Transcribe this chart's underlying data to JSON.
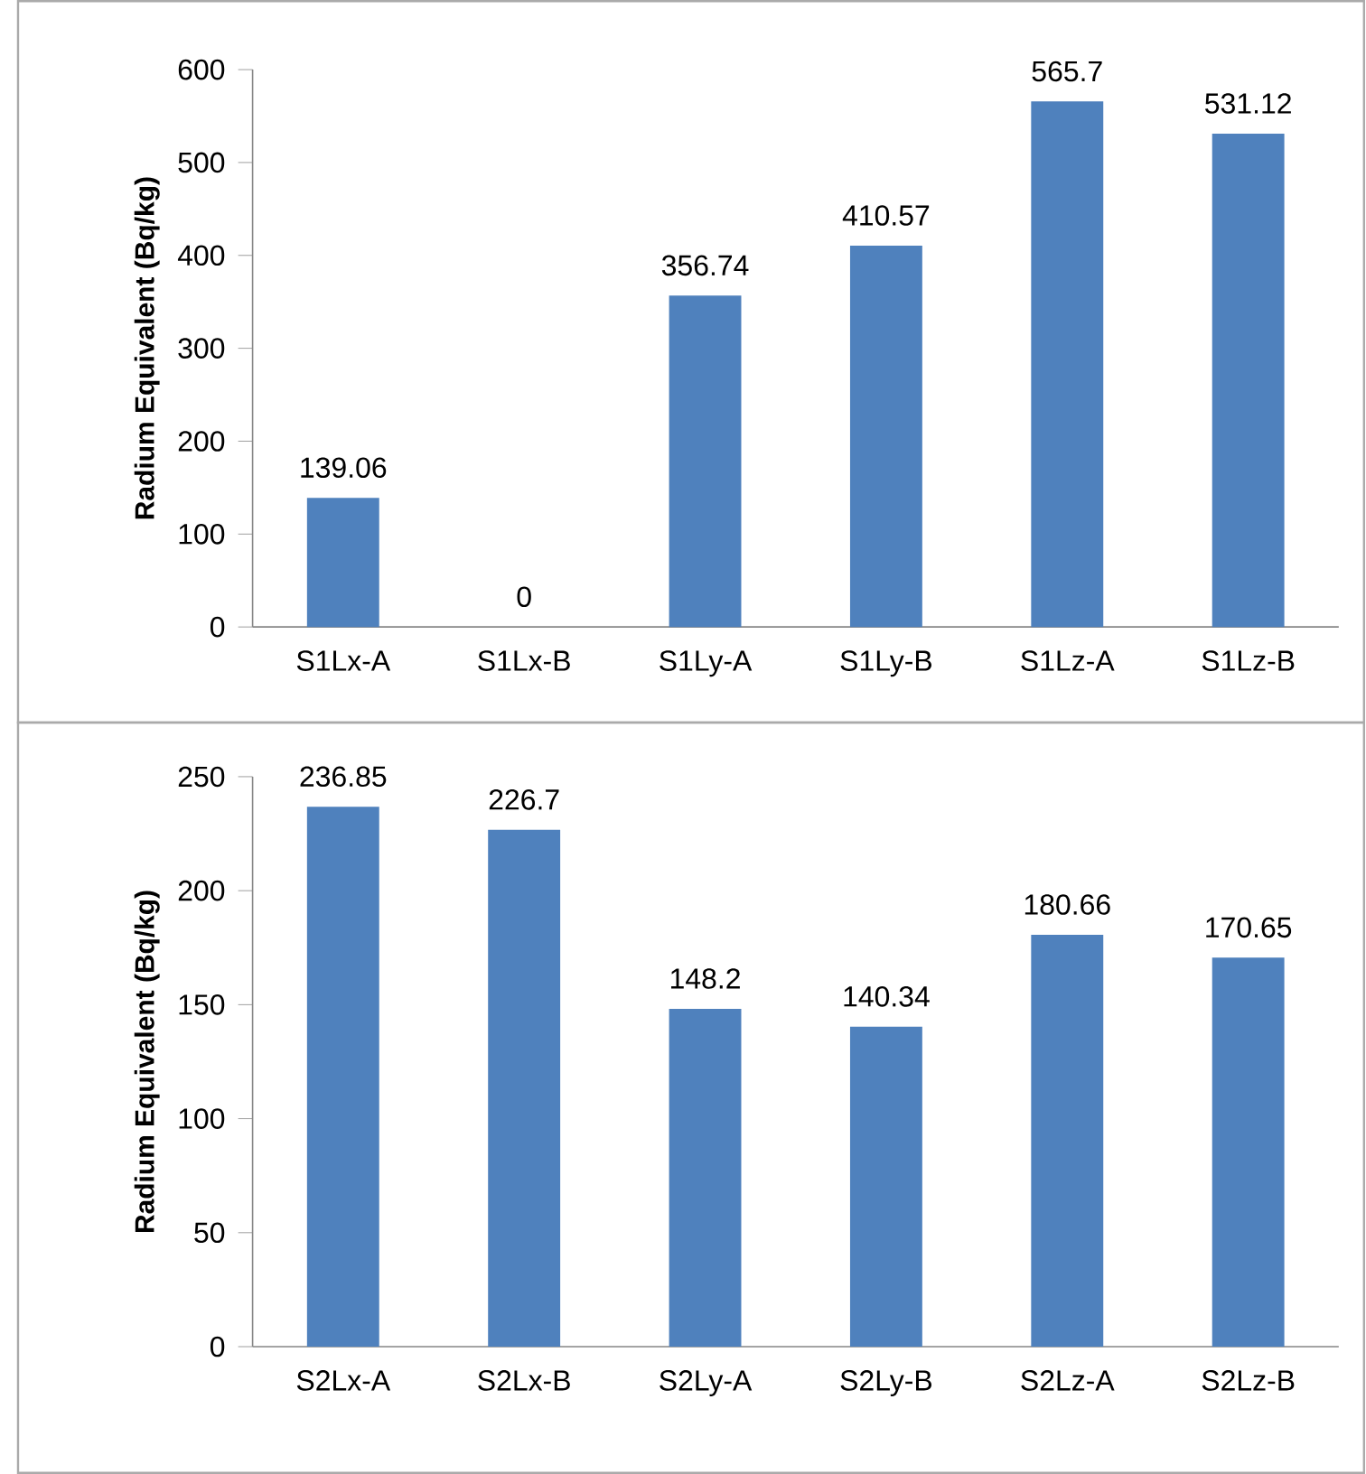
{
  "chart_data": [
    {
      "type": "bar",
      "ylabel": "Radium Equivalent (Bq/kg)",
      "categories": [
        "S1Lx-A",
        "S1Lx-B",
        "S1Ly-A",
        "S1Ly-B",
        "S1Lz-A",
        "S1Lz-B"
      ],
      "values": [
        139.06,
        0,
        356.74,
        410.57,
        565.7,
        531.12
      ],
      "color": "#4f81bd",
      "ylim": [
        0,
        600
      ],
      "yticks": [
        0,
        100,
        200,
        300,
        400,
        500,
        600
      ],
      "data_labels": true
    },
    {
      "type": "bar",
      "ylabel": "Radium Equivalent (Bq/kg)",
      "categories": [
        "S2Lx-A",
        "S2Lx-B",
        "S2Ly-A",
        "S2Ly-B",
        "S2Lz-A",
        "S2Lz-B"
      ],
      "values": [
        236.85,
        226.7,
        148.2,
        140.34,
        180.66,
        170.65
      ],
      "color": "#4f81bd",
      "ylim": [
        0,
        250
      ],
      "yticks": [
        0,
        50,
        100,
        150,
        200,
        250
      ],
      "data_labels": true
    }
  ]
}
